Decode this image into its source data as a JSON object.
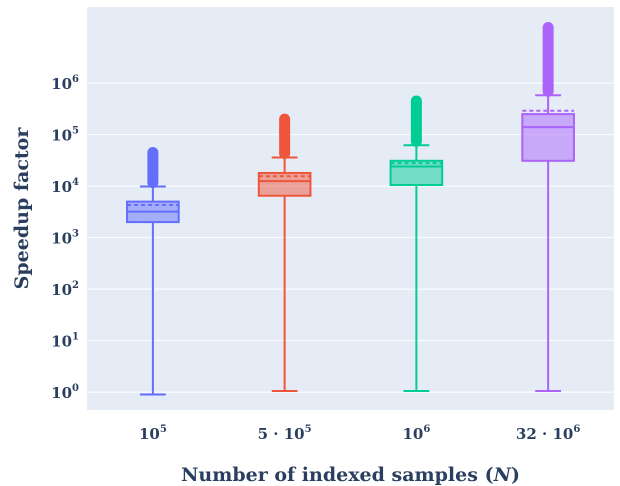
{
  "chart_data": {
    "type": "box",
    "xlabel": "Number of indexed samples",
    "xlabel_var": "N",
    "ylabel": "Speedup factor",
    "yscale": "log",
    "ylim": [
      0.45,
      30000000
    ],
    "grid": true,
    "categories": [
      "10^5",
      "5·10^5",
      "10^6",
      "32·10^6"
    ],
    "x_tick_labels": [
      {
        "base": "10",
        "exp": "5"
      },
      {
        "base": "5 · 10",
        "exp": "5"
      },
      {
        "base": "10",
        "exp": "6"
      },
      {
        "base": "32 · 10",
        "exp": "6"
      }
    ],
    "y_tick_labels": [
      {
        "base": "10",
        "exp": "0",
        "value": 1
      },
      {
        "base": "10",
        "exp": "1",
        "value": 10
      },
      {
        "base": "10",
        "exp": "2",
        "value": 100
      },
      {
        "base": "10",
        "exp": "3",
        "value": 1000
      },
      {
        "base": "10",
        "exp": "4",
        "value": 10000
      },
      {
        "base": "10",
        "exp": "5",
        "value": 100000
      },
      {
        "base": "10",
        "exp": "6",
        "value": 1000000
      }
    ],
    "series": [
      {
        "color": "#636efa",
        "min": 0.9,
        "q1": 2000,
        "median": 3200,
        "q3": 5000,
        "mean": 4300,
        "upper_fence": 9800,
        "outliers_to": 45000
      },
      {
        "color": "#ef553b",
        "min": 1.05,
        "q1": 6500,
        "median": 12500,
        "q3": 18000,
        "mean": 15500,
        "upper_fence": 36000,
        "outliers_to": 200000
      },
      {
        "color": "#00cc96",
        "min": 1.05,
        "q1": 10500,
        "median": 24000,
        "q3": 31000,
        "mean": 28000,
        "upper_fence": 62000,
        "outliers_to": 450000
      },
      {
        "color": "#ab63fa",
        "min": 1.05,
        "q1": 31000,
        "median": 140000,
        "q3": 250000,
        "mean": 290000,
        "upper_fence": 580000,
        "outliers_to": 12000000
      }
    ]
  }
}
